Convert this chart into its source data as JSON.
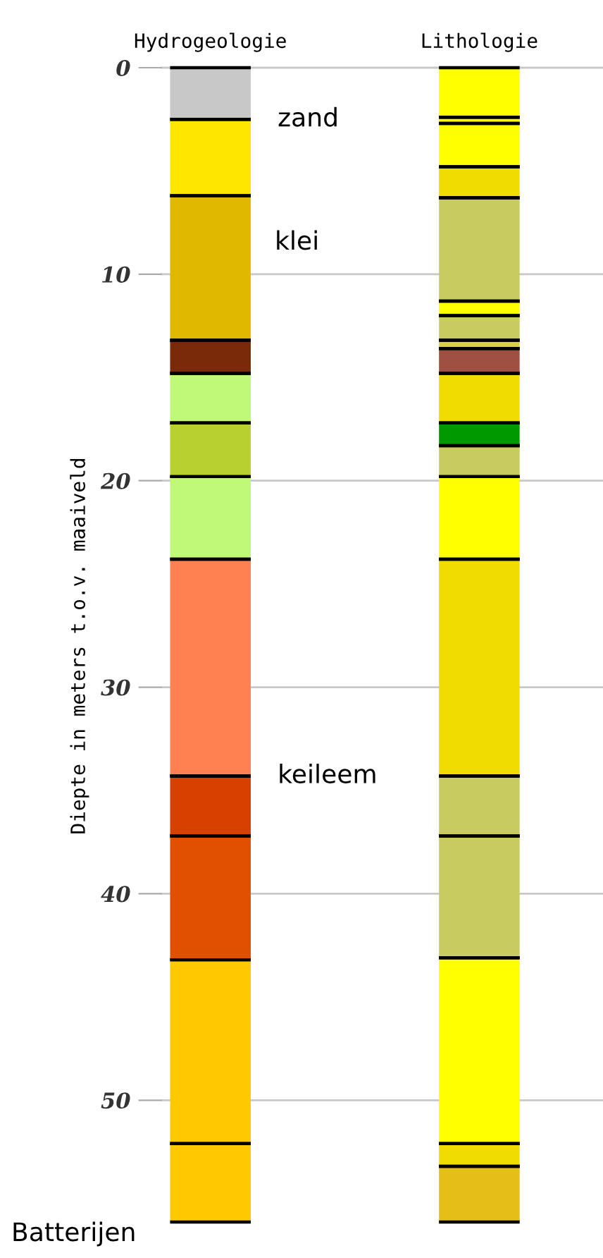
{
  "chart_data": {
    "type": "bar",
    "stacked": true,
    "categories": [
      "Hydrogeologie",
      "Lithologie"
    ],
    "ylabel": "Diepte in meters t.o.v. maaiveld",
    "ylim": [
      56,
      0
    ],
    "yticks": [
      0,
      10,
      20,
      30,
      40,
      50
    ],
    "grid": "y",
    "legend": false,
    "series": [
      {
        "values": [
          2.5,
          2.4
        ],
        "colors": [
          "#c8c8c8",
          "#ffff00"
        ]
      },
      {
        "values": [
          3.7,
          0.3
        ],
        "colors": [
          "#ffe600",
          "#ffff00"
        ]
      },
      {
        "values": [
          7.0,
          2.1
        ],
        "colors": [
          "#e0b800",
          "#ffff00"
        ]
      },
      {
        "values": [
          1.6,
          1.5
        ],
        "colors": [
          "#7a2a08",
          "#f0dc00"
        ]
      },
      {
        "values": [
          2.4,
          5.0
        ],
        "colors": [
          "#c0f878",
          "#c8cc60"
        ]
      },
      {
        "values": [
          2.6,
          0.7
        ],
        "colors": [
          "#b8d030",
          "#ffff00"
        ]
      },
      {
        "values": [
          4.0,
          1.2
        ],
        "colors": [
          "#c0f878",
          "#c8cc60"
        ]
      },
      {
        "values": [
          10.5,
          0.4
        ],
        "colors": [
          "#ff8050",
          "#d8d040"
        ]
      },
      {
        "values": [
          2.9,
          1.2
        ],
        "colors": [
          "#d84000",
          "#a05040"
        ]
      },
      {
        "values": [
          6.0,
          2.4
        ],
        "colors": [
          "#e05000",
          "#f0dc00"
        ]
      },
      {
        "values": [
          8.9,
          1.1
        ],
        "colors": [
          "#ffc800",
          "#009900"
        ]
      },
      {
        "values": [
          3.8,
          1.5
        ],
        "colors": [
          "#ffc800",
          "#c8cc60"
        ]
      },
      {
        "values": [
          null,
          4.0
        ],
        "colors": [
          null,
          "#ffff00"
        ]
      },
      {
        "values": [
          null,
          10.5
        ],
        "colors": [
          null,
          "#f0dc00"
        ]
      },
      {
        "values": [
          null,
          2.9
        ],
        "colors": [
          null,
          "#c8cc60"
        ]
      },
      {
        "values": [
          null,
          5.9
        ],
        "colors": [
          null,
          "#c8cc60"
        ]
      },
      {
        "values": [
          null,
          9.0
        ],
        "colors": [
          null,
          "#ffff00"
        ]
      },
      {
        "values": [
          null,
          1.1
        ],
        "colors": [
          null,
          "#f0dc00"
        ]
      },
      {
        "values": [
          null,
          2.7
        ],
        "colors": [
          null,
          "#e6be18"
        ]
      }
    ],
    "annotations": [
      {
        "text": "zand",
        "x": "Hydrogeologie",
        "y": 2.5
      },
      "klei",
      {
        "text": "keileem",
        "x": "Hydrogeologie",
        "y": 34.3
      },
      "Batterijen"
    ]
  }
}
